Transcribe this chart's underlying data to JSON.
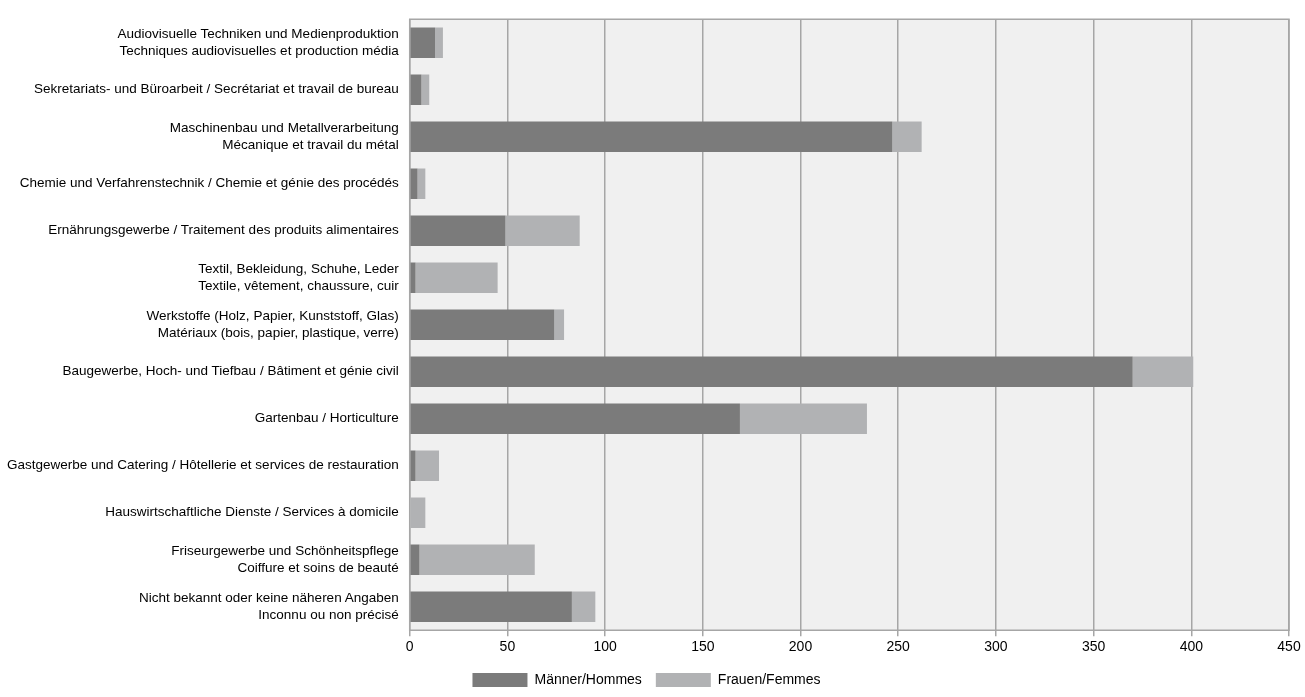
{
  "chart_data": {
    "type": "bar",
    "orientation": "horizontal",
    "stacked": true,
    "categories": [
      "Audiovisuelle Techniken und Medienproduktion\nTechniques audiovisuelles et production média",
      "Sekretariats- und Büroarbeit / Secrétariat et travail de bureau",
      "Maschinenbau und Metallverarbeitung\nMécanique et travail du métal",
      "Chemie und Verfahrenstechnik / Chemie et génie des procédés",
      "Ernährungsgewerbe / Traitement des produits alimentaires",
      "Textil, Bekleidung, Schuhe, Leder\nTextile, vêtement, chaussure, cuir",
      "Werkstoffe (Holz, Papier, Kunststoff, Glas)\nMatériaux (bois, papier, plastique, verre)",
      "Baugewerbe, Hoch- und Tiefbau / Bâtiment et génie civil",
      "Gartenbau / Horticulture",
      "Gastgewerbe und Catering / Hôtellerie et services de restauration",
      "Hauswirtschaftliche Dienste / Services à domicile",
      "Friseurgewerbe und Schönheitspflege\nCoiffure et soins de beauté",
      "Nicht bekannt oder keine näheren Angaben\nInconnu ou non précisé"
    ],
    "series": [
      {
        "name": "Männer/Hommes",
        "color": "#7b7b7b",
        "values": [
          13,
          6,
          247,
          4,
          49,
          3,
          74,
          370,
          169,
          3,
          0,
          5,
          83
        ]
      },
      {
        "name": "Frauen/Femmes",
        "color": "#b1b2b4",
        "values": [
          4,
          4,
          15,
          4,
          38,
          42,
          5,
          31,
          65,
          12,
          8,
          59,
          12
        ]
      }
    ],
    "xlim": [
      0,
      450
    ],
    "xticks": [
      0,
      50,
      100,
      150,
      200,
      250,
      300,
      350,
      400,
      450
    ],
    "grid": "x",
    "legend": "bottom"
  }
}
